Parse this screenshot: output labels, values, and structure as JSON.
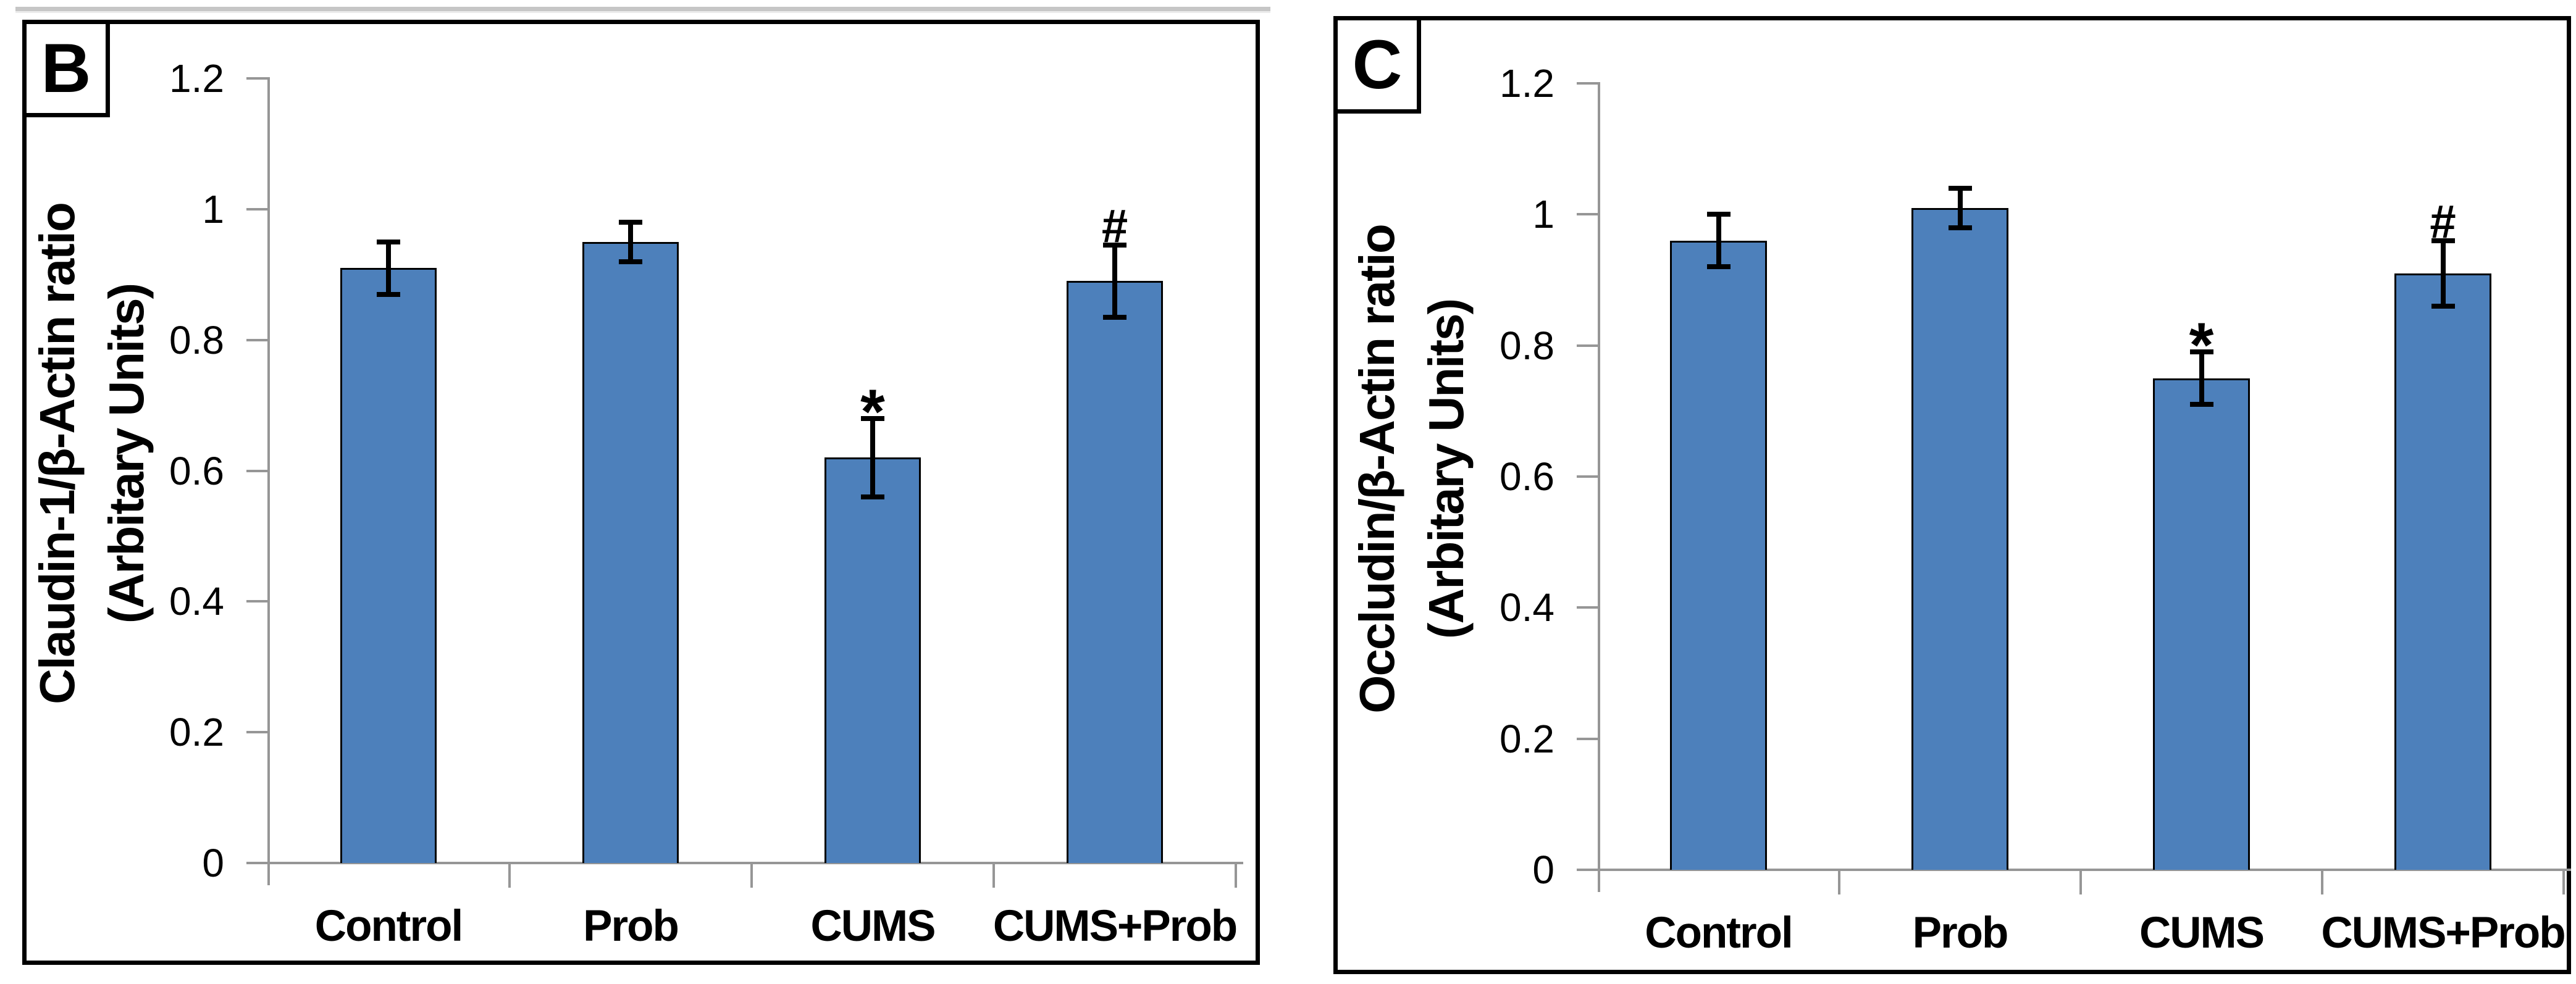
{
  "decor": {
    "top_strip_color": "#c6c6c6"
  },
  "chart_data": [
    {
      "type": "bar",
      "panel_label": "B",
      "ylabel_line1": "Claudin-1/β-Actin ratio",
      "ylabel_line2": "(Arbitary Units)",
      "categories": [
        "Control",
        "Prob",
        "CUMS",
        "CUMS+Prob"
      ],
      "values": [
        0.91,
        0.95,
        0.62,
        0.89
      ],
      "errors": [
        0.04,
        0.03,
        0.06,
        0.055
      ],
      "annotations": [
        "",
        "",
        "*",
        "#"
      ],
      "ylim": [
        0,
        1.2
      ],
      "yticks": [
        0,
        0.2,
        0.4,
        0.6,
        0.8,
        1,
        1.2
      ],
      "ytick_labels": [
        "0",
        "0.2",
        "0.4",
        "0.6",
        "0.8",
        "1",
        "1.2"
      ],
      "xlabel": "",
      "grid": false,
      "legend": null,
      "bar_color": "#4d80bb",
      "bar_border_color": "#000000",
      "axis_color": "#969696",
      "error_bar_color": "#000000"
    },
    {
      "type": "bar",
      "panel_label": "C",
      "ylabel_line1": "Occludin/β-Actin ratio",
      "ylabel_line2": "(Arbitary Units)",
      "categories": [
        "Control",
        "Prob",
        "CUMS",
        "CUMS+Prob"
      ],
      "values": [
        0.96,
        1.01,
        0.75,
        0.91
      ],
      "errors": [
        0.04,
        0.03,
        0.04,
        0.05
      ],
      "annotations": [
        "",
        "",
        "*",
        "#"
      ],
      "ylim": [
        0,
        1.2
      ],
      "yticks": [
        0,
        0.2,
        0.4,
        0.6,
        0.8,
        1,
        1.2
      ],
      "ytick_labels": [
        "0",
        "0.2",
        "0.4",
        "0.6",
        "0.8",
        "1",
        "1.2"
      ],
      "xlabel": "",
      "grid": false,
      "legend": null,
      "bar_color": "#4d80bb",
      "bar_border_color": "#000000",
      "axis_color": "#969696",
      "error_bar_color": "#000000"
    }
  ]
}
